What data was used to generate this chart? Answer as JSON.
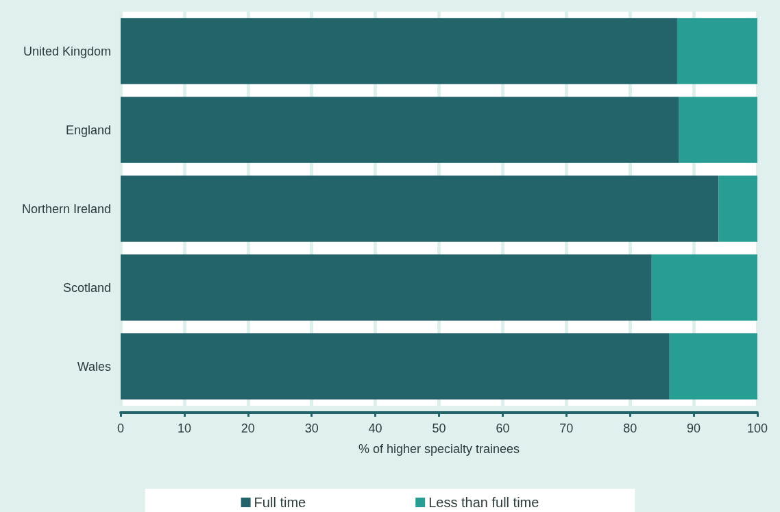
{
  "chart_data": {
    "type": "bar",
    "orientation": "horizontal",
    "stacked": true,
    "xlabel": "% of higher specialty trainees",
    "categories": [
      "United Kingdom",
      "England",
      "Northern Ireland",
      "Scotland",
      "Wales"
    ],
    "series": [
      {
        "name": "Full time",
        "color": "#23636a",
        "values": [
          87.4,
          87.7,
          93.9,
          83.4,
          86.2
        ]
      },
      {
        "name": "Less than full time",
        "color": "#289d94",
        "values": [
          12.6,
          12.3,
          6.1,
          16.6,
          13.8
        ]
      }
    ],
    "xlim": [
      0,
      100
    ],
    "xticks": [
      0,
      10,
      20,
      30,
      40,
      50,
      60,
      70,
      80,
      90,
      100
    ],
    "grid": "x",
    "legend": "bottom"
  }
}
